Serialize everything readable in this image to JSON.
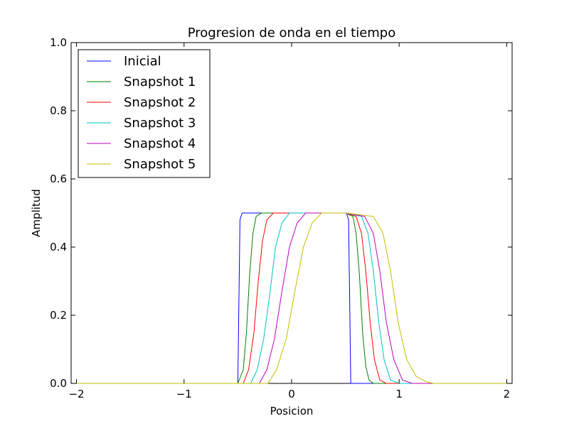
{
  "chart_data": {
    "type": "line",
    "title": "Progresion de onda en el tiempo",
    "xlabel": "Posicion",
    "ylabel": "Amplitud",
    "xlim": [
      -2.05,
      2.05
    ],
    "ylim": [
      0.0,
      1.0
    ],
    "xticks": [
      "−2",
      "−1",
      "0",
      "1",
      "2"
    ],
    "xtick_values": [
      -2,
      -1,
      0,
      1,
      2
    ],
    "yticks": [
      "0.0",
      "0.2",
      "0.4",
      "0.6",
      "0.8",
      "1.0"
    ],
    "ytick_values": [
      0.0,
      0.2,
      0.4,
      0.6,
      0.8,
      1.0
    ],
    "grid": false,
    "legend_position": "top-left",
    "series": [
      {
        "name": "Inicial",
        "color": "#0000ff",
        "x": [
          -2.0,
          -0.5,
          -0.48,
          -0.46,
          0.51,
          0.53,
          0.55,
          2.0
        ],
        "y": [
          0.0,
          0.0,
          0.48,
          0.5,
          0.5,
          0.48,
          0.0,
          0.0
        ]
      },
      {
        "name": "Snapshot 1",
        "color": "#008000",
        "x": [
          -2.0,
          -0.5,
          -0.45,
          -0.42,
          -0.39,
          -0.36,
          -0.33,
          -0.28,
          -0.2,
          0.5,
          0.57,
          0.6,
          0.63,
          0.66,
          0.69,
          0.72,
          0.76,
          2.0
        ],
        "y": [
          0.0,
          0.0,
          0.04,
          0.15,
          0.32,
          0.44,
          0.49,
          0.5,
          0.5,
          0.5,
          0.49,
          0.44,
          0.32,
          0.15,
          0.05,
          0.01,
          0.0,
          0.0
        ]
      },
      {
        "name": "Snapshot 2",
        "color": "#ff0000",
        "x": [
          -2.0,
          -0.45,
          -0.4,
          -0.35,
          -0.31,
          -0.27,
          -0.23,
          -0.17,
          -0.1,
          0.5,
          0.6,
          0.65,
          0.69,
          0.73,
          0.77,
          0.82,
          0.88,
          2.0
        ],
        "y": [
          0.0,
          0.0,
          0.04,
          0.15,
          0.3,
          0.42,
          0.48,
          0.5,
          0.5,
          0.5,
          0.49,
          0.44,
          0.33,
          0.18,
          0.07,
          0.01,
          0.0,
          0.0
        ]
      },
      {
        "name": "Snapshot 3",
        "color": "#00bfbf",
        "x": [
          -2.0,
          -0.38,
          -0.32,
          -0.26,
          -0.2,
          -0.15,
          -0.09,
          -0.02,
          0.05,
          0.5,
          0.65,
          0.71,
          0.76,
          0.81,
          0.86,
          0.92,
          1.0,
          2.0
        ],
        "y": [
          0.0,
          0.0,
          0.04,
          0.13,
          0.27,
          0.4,
          0.47,
          0.5,
          0.5,
          0.5,
          0.49,
          0.44,
          0.33,
          0.18,
          0.07,
          0.01,
          0.0,
          0.0
        ]
      },
      {
        "name": "Snapshot 4",
        "color": "#bf00bf",
        "x": [
          -2.0,
          -0.3,
          -0.23,
          -0.16,
          -0.09,
          -0.02,
          0.05,
          0.13,
          0.22,
          0.5,
          0.68,
          0.76,
          0.82,
          0.88,
          0.95,
          1.03,
          1.12,
          2.0
        ],
        "y": [
          0.0,
          0.0,
          0.04,
          0.13,
          0.27,
          0.4,
          0.47,
          0.5,
          0.5,
          0.5,
          0.49,
          0.44,
          0.33,
          0.18,
          0.07,
          0.01,
          0.0,
          0.0
        ]
      },
      {
        "name": "Snapshot 5",
        "color": "#bfbf00",
        "x": [
          -2.0,
          -0.22,
          -0.14,
          -0.05,
          0.03,
          0.11,
          0.19,
          0.28,
          0.38,
          0.5,
          0.76,
          0.85,
          0.92,
          0.99,
          1.07,
          1.16,
          1.26,
          1.32,
          2.0
        ],
        "y": [
          0.0,
          0.0,
          0.04,
          0.13,
          0.27,
          0.4,
          0.47,
          0.5,
          0.5,
          0.5,
          0.49,
          0.44,
          0.33,
          0.18,
          0.07,
          0.02,
          0.004,
          0.0,
          0.0
        ]
      }
    ]
  }
}
